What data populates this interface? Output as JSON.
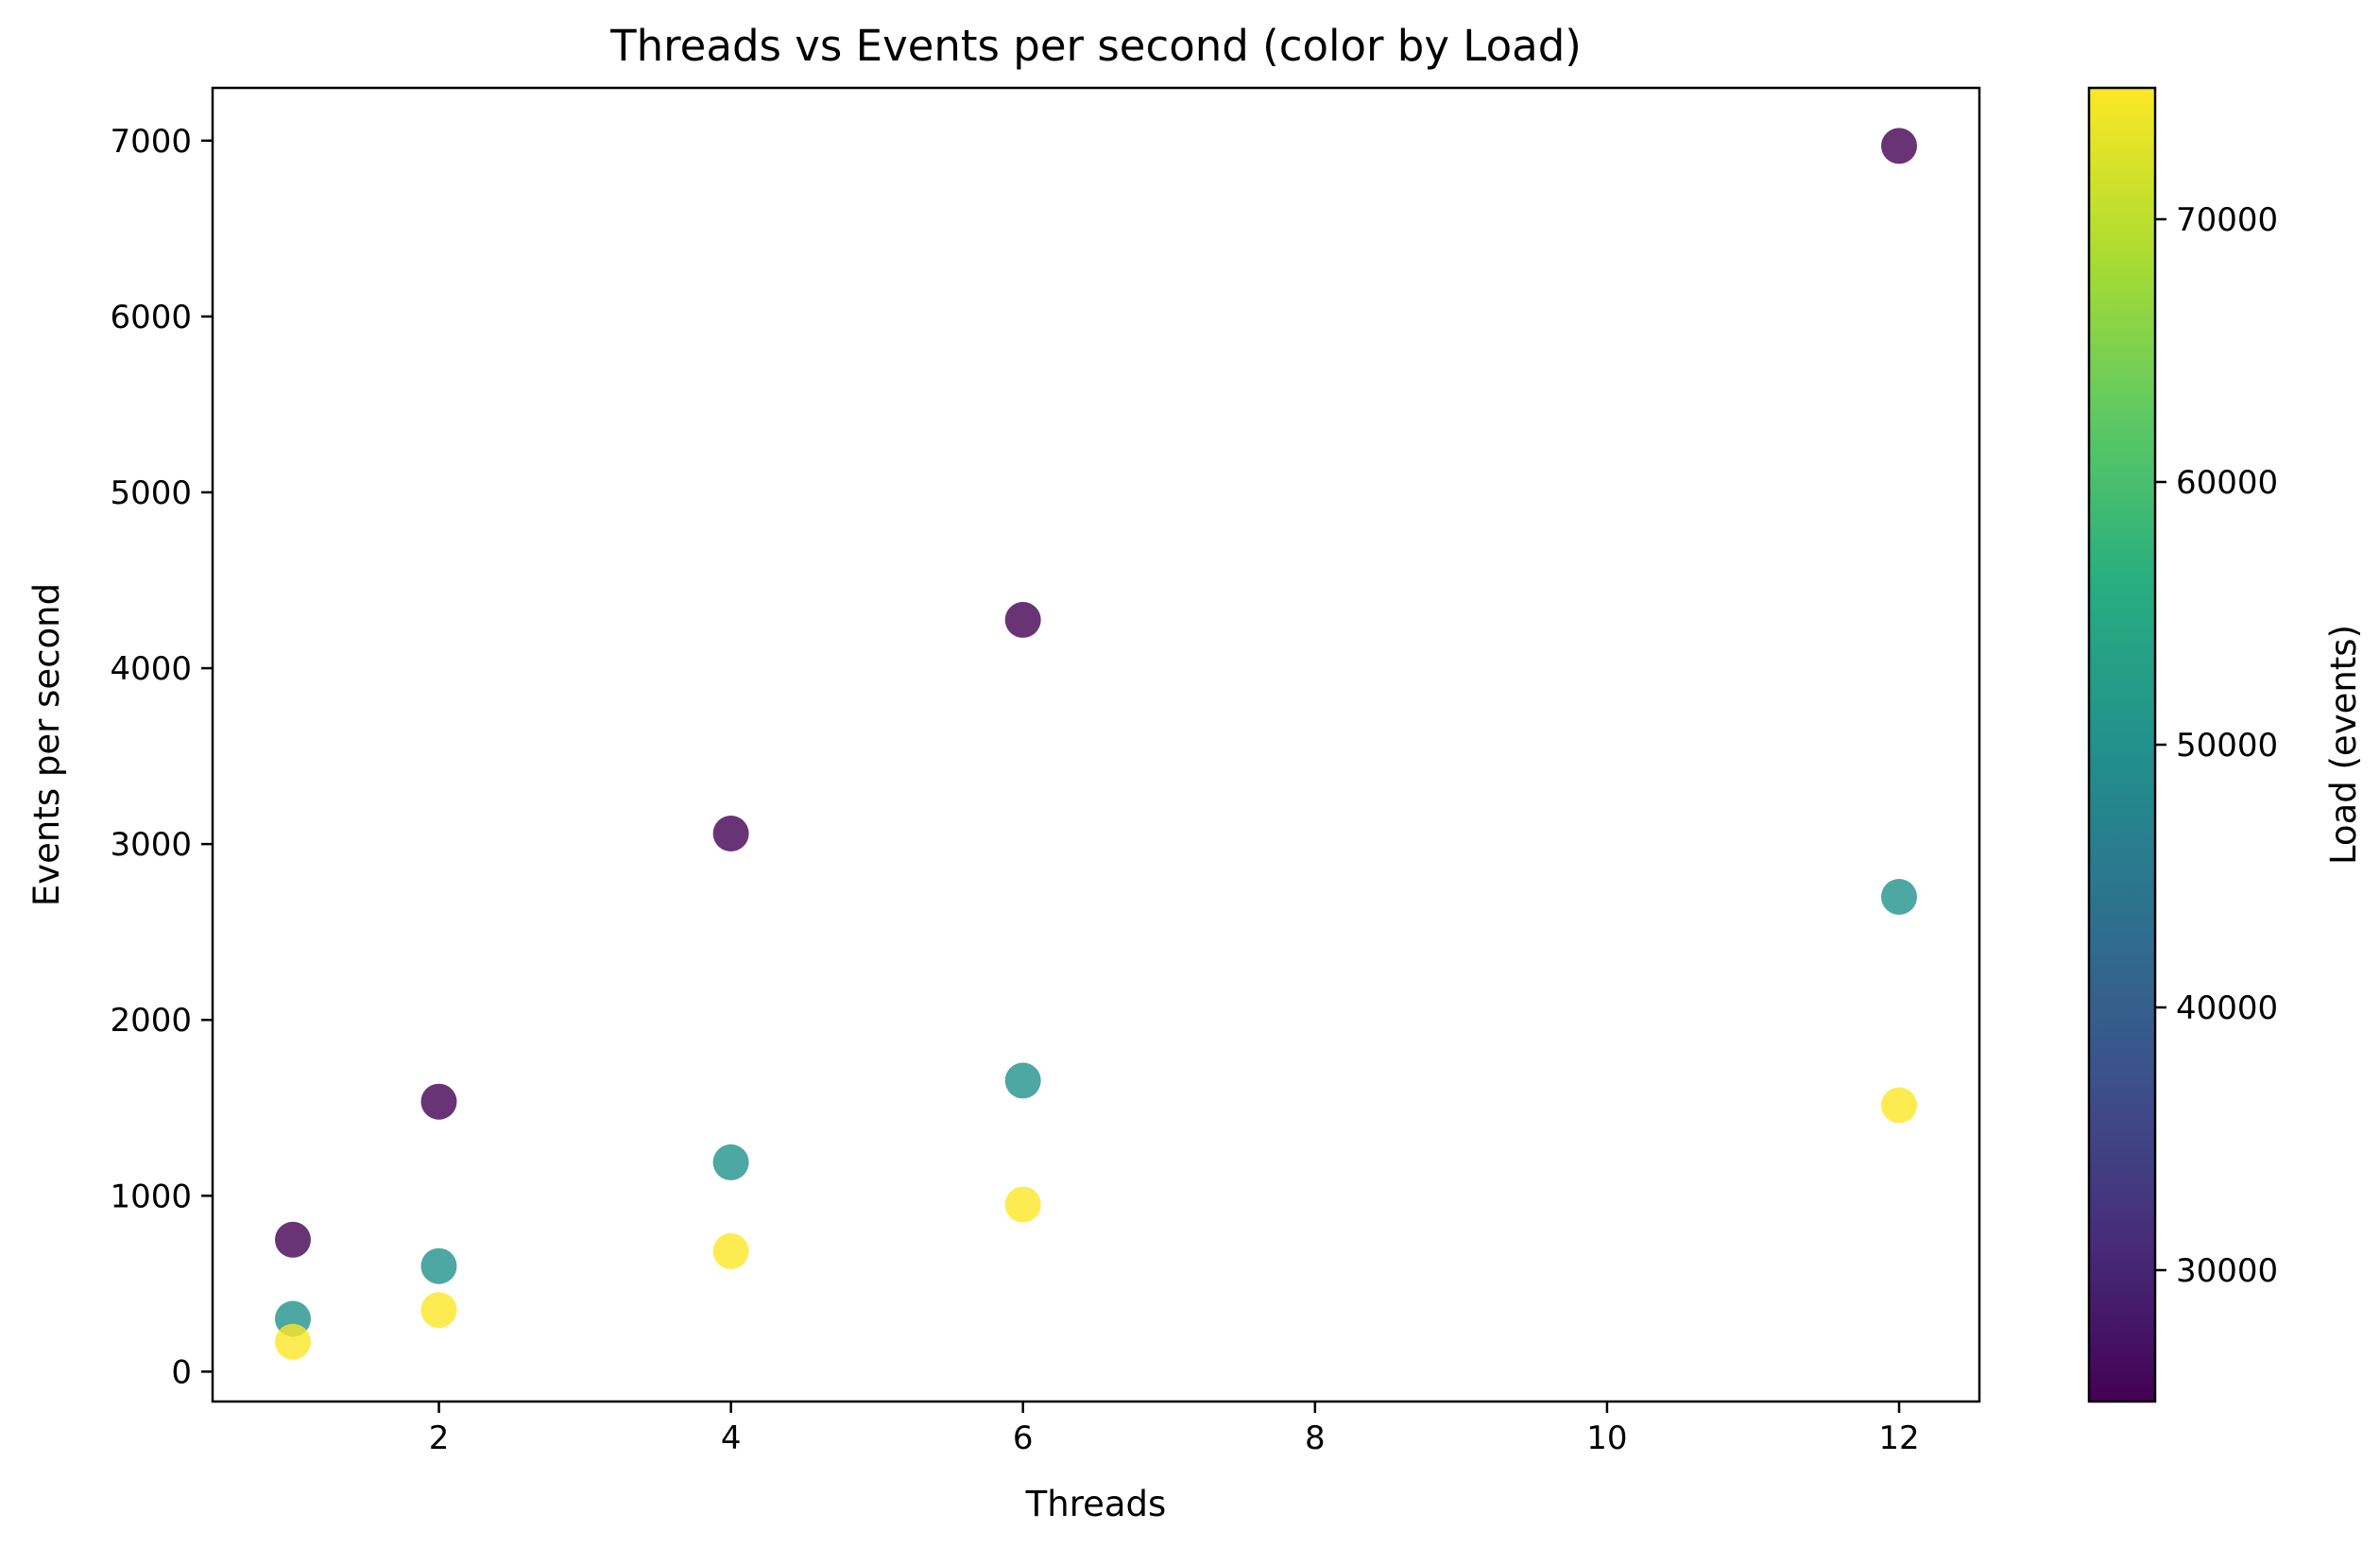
{
  "chart_data": {
    "type": "scatter",
    "title": "Threads vs Events per second (color by Load)",
    "xlabel": "Threads",
    "ylabel": "Events per second",
    "xlim": [
      0.45,
      12.55
    ],
    "ylim": [
      -170,
      7300
    ],
    "xticks": [
      2,
      4,
      6,
      8,
      10,
      12
    ],
    "yticks": [
      0,
      1000,
      2000,
      3000,
      4000,
      5000,
      6000,
      7000
    ],
    "grid": false,
    "colorbar": {
      "label": "Load (events)",
      "colormap": "viridis",
      "range": [
        25000,
        75000
      ],
      "ticks": [
        30000,
        40000,
        50000,
        60000,
        70000
      ]
    },
    "points": [
      {
        "x": 1,
        "y": 750,
        "load": 25000
      },
      {
        "x": 1,
        "y": 300,
        "load": 50000
      },
      {
        "x": 1,
        "y": 170,
        "load": 75000
      },
      {
        "x": 2,
        "y": 1535,
        "load": 25000
      },
      {
        "x": 2,
        "y": 600,
        "load": 50000
      },
      {
        "x": 2,
        "y": 350,
        "load": 75000
      },
      {
        "x": 4,
        "y": 3060,
        "load": 25000
      },
      {
        "x": 4,
        "y": 1190,
        "load": 50000
      },
      {
        "x": 4,
        "y": 685,
        "load": 75000
      },
      {
        "x": 6,
        "y": 4275,
        "load": 25000
      },
      {
        "x": 6,
        "y": 1655,
        "load": 50000
      },
      {
        "x": 6,
        "y": 950,
        "load": 75000
      },
      {
        "x": 12,
        "y": 6970,
        "load": 25000
      },
      {
        "x": 12,
        "y": 2700,
        "load": 50000
      },
      {
        "x": 12,
        "y": 1515,
        "load": 75000
      }
    ]
  }
}
